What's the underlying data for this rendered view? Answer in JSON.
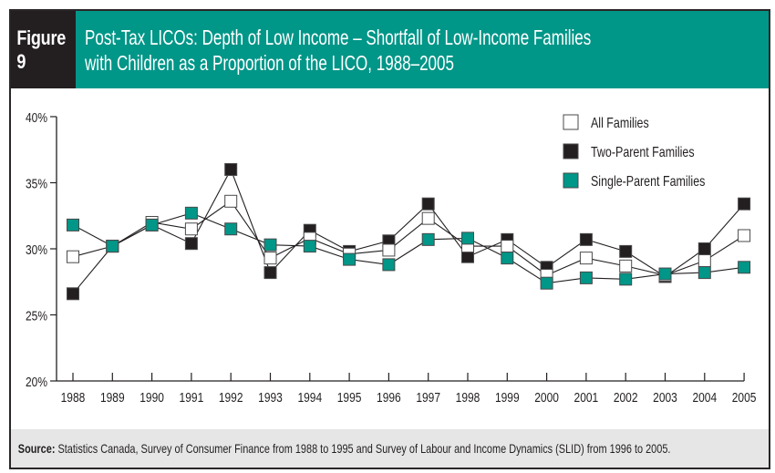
{
  "figure": {
    "label": "Figure 9",
    "title_line1": "Post-Tax LICOs: Depth of Low Income – Shortfall of Low-Income Families",
    "title_line2": "with Children as a Proportion of the LICO, 1988–2005"
  },
  "footer": {
    "source_label": "Source:",
    "source_text": " Statistics Canada, Survey of Consumer Finance from 1988 to 1995 and Survey of Labour and Income Dynamics (SLID) from 1996 to 2005."
  },
  "colors": {
    "header_dark": "#231f20",
    "header_accent": "#009688",
    "two_parent": "#231f20",
    "single_parent": "#009688",
    "all_families": "#ffffff"
  },
  "chart_data": {
    "type": "line",
    "title": "Post-Tax LICOs: Depth of Low Income – Shortfall of Low-Income Families with Children as a Proportion of the LICO, 1988–2005",
    "xlabel": "",
    "ylabel": "",
    "ylim": [
      20,
      40
    ],
    "yticks": [
      20,
      25,
      30,
      35,
      40
    ],
    "ytick_labels": [
      "20%",
      "25%",
      "30%",
      "35%",
      "40%"
    ],
    "grid": false,
    "legend_position": "top-right",
    "x": [
      "1988",
      "1989",
      "1990",
      "1991",
      "1992",
      "1993",
      "1994",
      "1995",
      "1996",
      "1997",
      "1998",
      "1999",
      "2000",
      "2001",
      "2002",
      "2003",
      "2004",
      "2005"
    ],
    "series": [
      {
        "name": "All Families",
        "marker": "hollow-square",
        "color": "#ffffff",
        "values": [
          29.4,
          30.2,
          32.0,
          31.5,
          33.6,
          29.3,
          30.8,
          29.6,
          29.9,
          32.3,
          30.2,
          30.2,
          28.0,
          29.3,
          28.7,
          28.0,
          29.1,
          31.0
        ]
      },
      {
        "name": "Two-Parent Families",
        "marker": "filled-square",
        "color": "#231f20",
        "values": [
          26.6,
          30.2,
          31.8,
          30.4,
          36.0,
          28.2,
          31.4,
          29.8,
          30.6,
          33.4,
          29.4,
          30.7,
          28.6,
          30.7,
          29.8,
          27.9,
          30.0,
          33.4
        ]
      },
      {
        "name": "Single-Parent Families",
        "marker": "filled-square",
        "color": "#009688",
        "values": [
          31.8,
          30.2,
          31.8,
          32.7,
          31.5,
          30.3,
          30.2,
          29.2,
          28.8,
          30.7,
          30.8,
          29.3,
          27.4,
          27.8,
          27.7,
          28.1,
          28.2,
          28.6
        ]
      }
    ]
  }
}
